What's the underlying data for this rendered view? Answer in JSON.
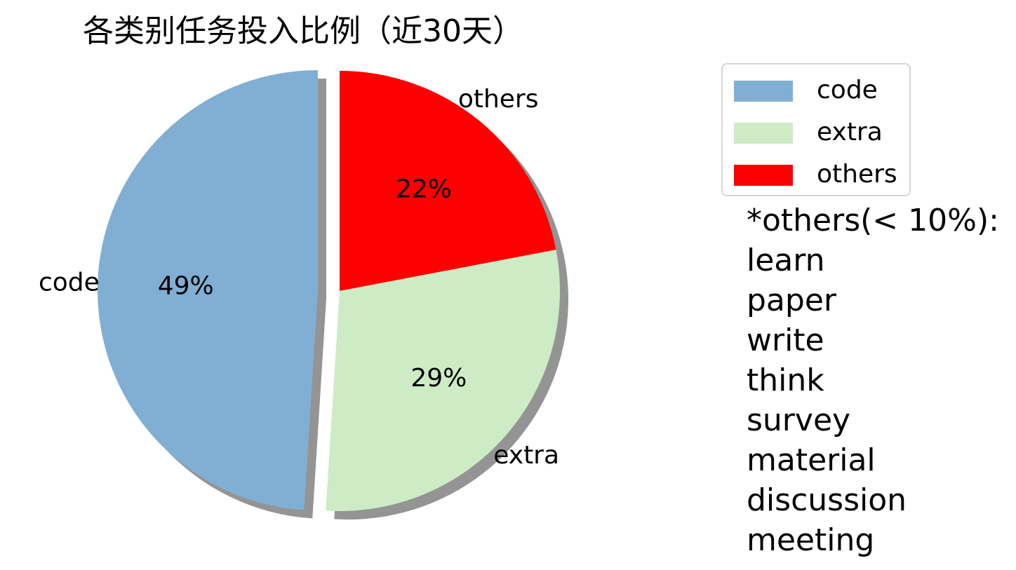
{
  "chart_data": {
    "type": "pie",
    "title": "各类别任务投入比例（近30天）",
    "slices": [
      {
        "label": "others",
        "value": 22,
        "pct_label": "22%",
        "color": "#ff0000"
      },
      {
        "label": "extra",
        "value": 29,
        "pct_label": "29%",
        "color": "#cdebc5"
      },
      {
        "label": "code",
        "value": 49,
        "pct_label": "49%",
        "color": "#80afd3"
      }
    ],
    "start": "top",
    "direction": "clockwise",
    "exploded": [
      "code"
    ],
    "shadow": true,
    "legend": {
      "position": "top-right",
      "entries": [
        {
          "label": "code",
          "color": "#80afd3"
        },
        {
          "label": "extra",
          "color": "#cdebc5"
        },
        {
          "label": "others",
          "color": "#ff0000"
        }
      ]
    }
  },
  "note": {
    "heading": "*others(< 10%):",
    "items": [
      "learn",
      "paper",
      "write",
      "think",
      "survey",
      "material",
      "discussion",
      "meeting"
    ]
  }
}
